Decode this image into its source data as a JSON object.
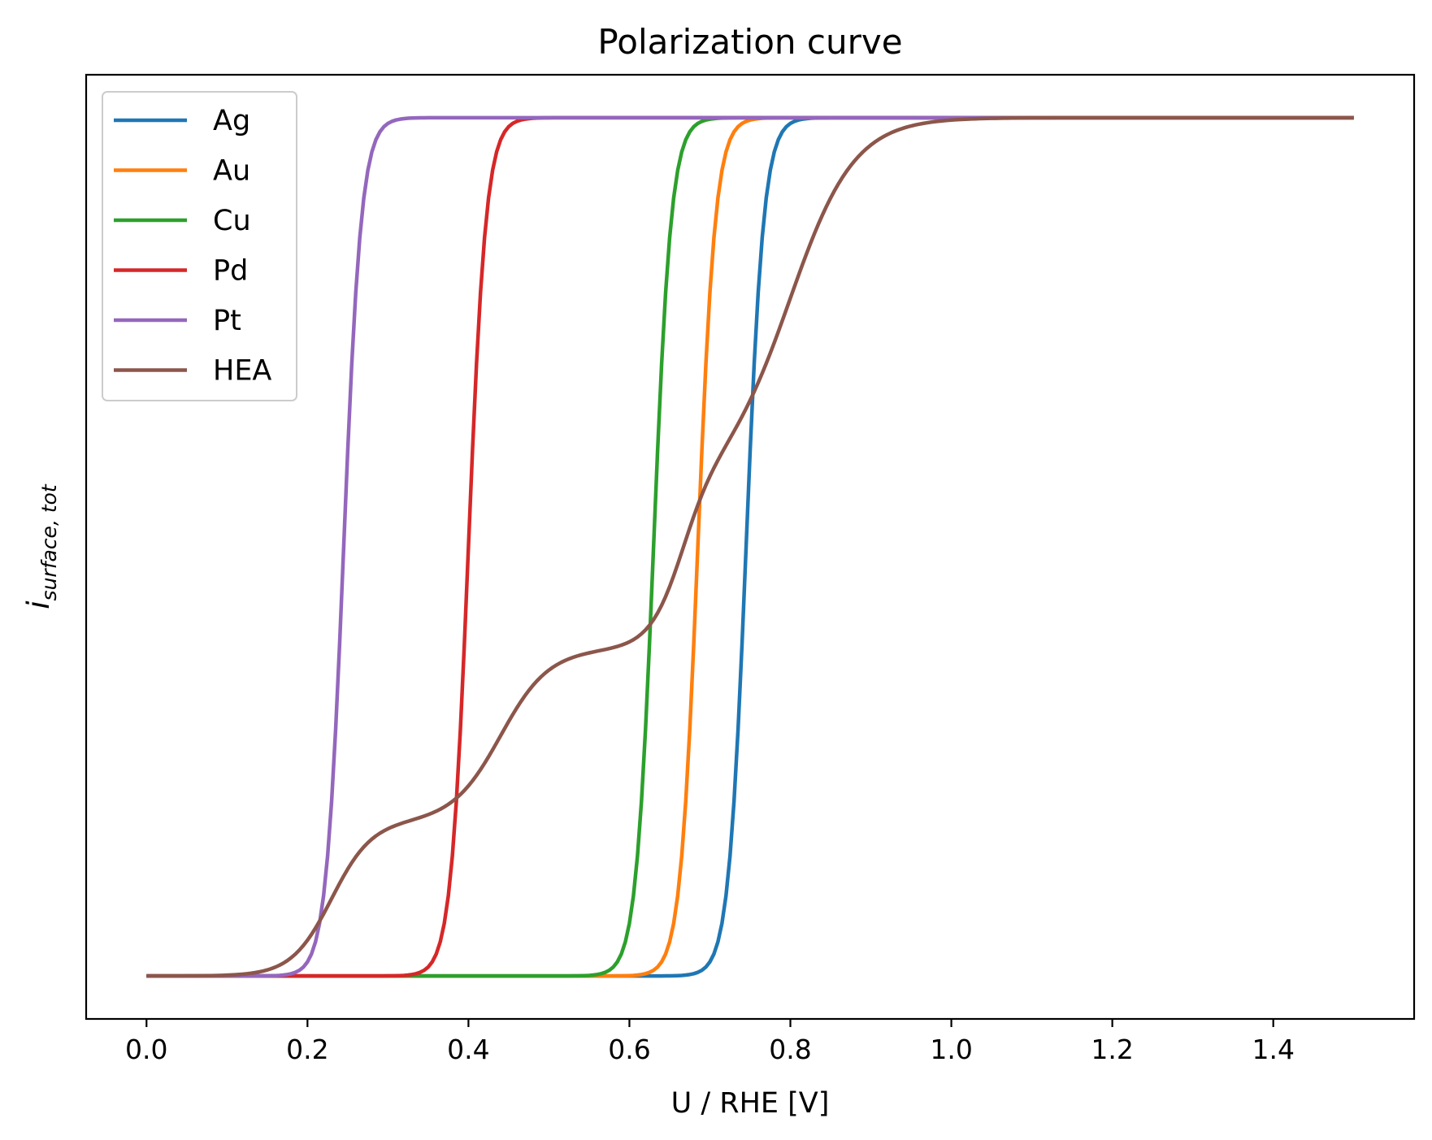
{
  "chart_data": {
    "type": "line",
    "title": "Polarization curve",
    "xlabel": "U / RHE [V]",
    "ylabel": {
      "main": "i",
      "sub": "surface, tot"
    },
    "xlim": [
      -0.075,
      1.575
    ],
    "ylim": [
      -0.05,
      1.05
    ],
    "xticks": [
      0.0,
      0.2,
      0.4,
      0.6,
      0.8,
      1.0,
      1.2,
      1.4
    ],
    "xtick_labels": [
      "0.0",
      "0.2",
      "0.4",
      "0.6",
      "0.8",
      "1.0",
      "1.2",
      "1.4"
    ],
    "y_tick_labels_shown": false,
    "grid": false,
    "legend_position": "upper-left",
    "x_range": [
      0.0,
      1.5
    ],
    "series": [
      {
        "name": "Ag",
        "color": "#1f77b4",
        "shape": "sigmoid",
        "midpoint": 0.745,
        "width": 0.011
      },
      {
        "name": "Au",
        "color": "#ff7f0e",
        "shape": "sigmoid",
        "midpoint": 0.685,
        "width": 0.011
      },
      {
        "name": "Cu",
        "color": "#2ca02c",
        "shape": "sigmoid",
        "midpoint": 0.63,
        "width": 0.011
      },
      {
        "name": "Pd",
        "color": "#d62728",
        "shape": "sigmoid",
        "midpoint": 0.4,
        "width": 0.011
      },
      {
        "name": "Pt",
        "color": "#9467bd",
        "shape": "sigmoid",
        "midpoint": 0.245,
        "width": 0.011
      },
      {
        "name": "HEA",
        "color": "#8c564b",
        "shape": "sum_of_sigmoids",
        "components": [
          {
            "weight": 0.18,
            "midpoint": 0.23,
            "width": 0.025
          },
          {
            "weight": 0.2,
            "midpoint": 0.44,
            "width": 0.03
          },
          {
            "weight": 0.2,
            "midpoint": 0.665,
            "width": 0.02
          },
          {
            "weight": 0.42,
            "midpoint": 0.8,
            "width": 0.04
          }
        ]
      }
    ]
  }
}
